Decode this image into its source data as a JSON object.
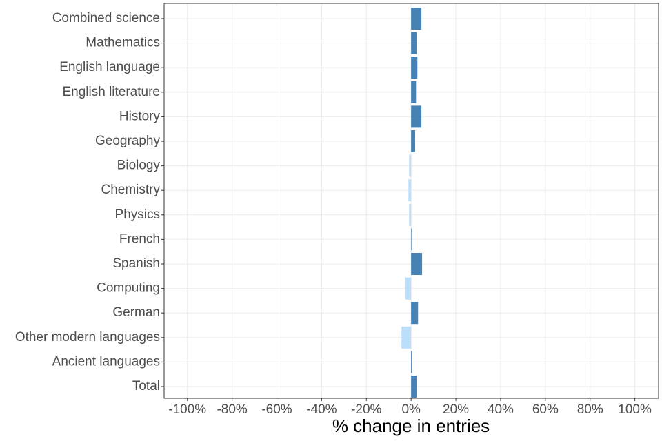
{
  "chart_data": {
    "type": "hbar",
    "x_label": "% change in entries",
    "categories": [
      "Combined science",
      "Mathematics",
      "English language",
      "English literature",
      "History",
      "Geography",
      "Biology",
      "Chemistry",
      "Physics",
      "French",
      "Spanish",
      "Computing",
      "German",
      "Other modern languages",
      "Ancient languages",
      "Total"
    ],
    "values": [
      4.6,
      2.5,
      2.8,
      2.2,
      4.6,
      1.8,
      -0.9,
      -1.2,
      -0.9,
      0.2,
      4.9,
      -2.5,
      3.1,
      -4.3,
      0.5,
      2.5
    ],
    "colors": [
      "#4682b4",
      "#4682b4",
      "#4682b4",
      "#4682b4",
      "#4682b4",
      "#4682b4",
      "#bbdefb",
      "#bbdefb",
      "#bbdefb",
      "#4682b4",
      "#4682b4",
      "#bbdefb",
      "#4682b4",
      "#bbdefb",
      "#4682b4",
      "#4682b4"
    ],
    "xlim": [
      -110.4,
      110.6
    ],
    "xticks": [
      {
        "value": -100,
        "label": "-100%"
      },
      {
        "value": -80,
        "label": "-80%"
      },
      {
        "value": -60,
        "label": "-60%"
      },
      {
        "value": -40,
        "label": "-40%"
      },
      {
        "value": -20,
        "label": "-20%"
      },
      {
        "value": 0,
        "label": "0%"
      },
      {
        "value": 20,
        "label": "20%"
      },
      {
        "value": 40,
        "label": "40%"
      },
      {
        "value": 60,
        "label": "60%"
      },
      {
        "value": 80,
        "label": "80%"
      },
      {
        "value": 100,
        "label": "100%"
      }
    ],
    "grid": true
  }
}
